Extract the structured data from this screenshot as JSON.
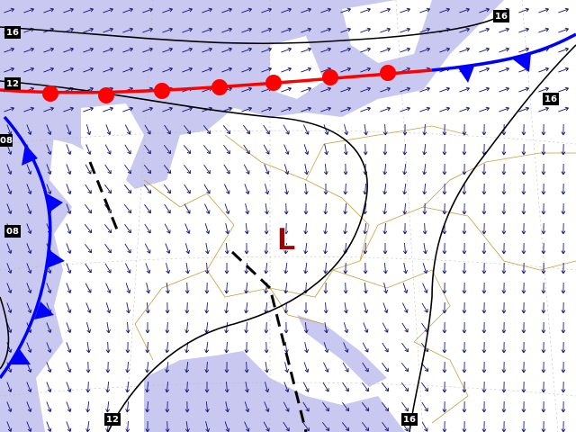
{
  "isobar_labels": [
    "16",
    "12",
    "08",
    "08",
    "12",
    "16",
    "16",
    "16"
  ],
  "pressure_center": {
    "label": "L"
  }
}
